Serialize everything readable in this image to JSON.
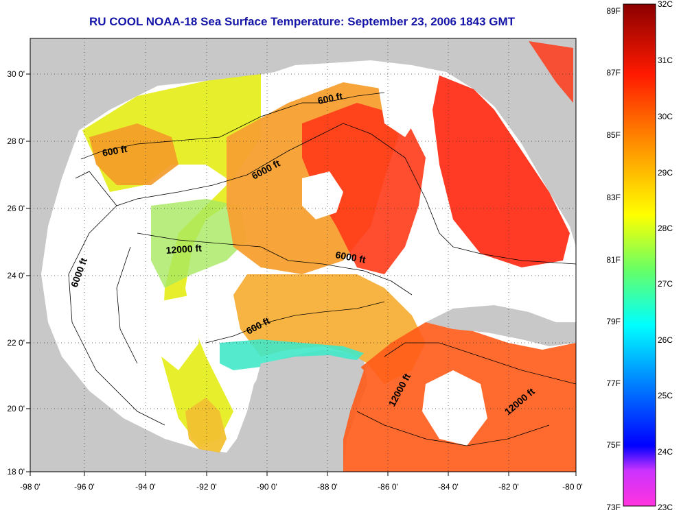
{
  "title": "RU COOL  NOAA-18  Sea Surface Temperature:  September 23, 2006 1843 GMT",
  "map": {
    "x_ticks": [
      "-98 0'",
      "-96 0'",
      "-94 0'",
      "-92 0'",
      "-90 0'",
      "-88 0'",
      "-86 0'",
      "-84 0'",
      "-82 0'",
      "-80 0'"
    ],
    "y_ticks": [
      "30 0'",
      "28 0'",
      "26 0'",
      "24 0'",
      "22 0'",
      "20 0'",
      "18 0'"
    ],
    "contour_labels": [
      {
        "id": "c600a",
        "text": "600 ft"
      },
      {
        "id": "c600b",
        "text": "600 ft"
      },
      {
        "id": "c600c",
        "text": "600 ft"
      },
      {
        "id": "c6000a",
        "text": "6000 ft"
      },
      {
        "id": "c6000b",
        "text": "6000 ft"
      },
      {
        "id": "c6000c",
        "text": "6000 ft"
      },
      {
        "id": "c12000a",
        "text": "12000 ft"
      },
      {
        "id": "c12000b",
        "text": "12000 ft"
      },
      {
        "id": "c12000c",
        "text": "12000 ft"
      }
    ],
    "colors": {
      "land": "#c8c8c8",
      "cloud": "#ffffff",
      "frame": "#000000"
    }
  },
  "colorbar": {
    "fahrenheit_labels": [
      "89F",
      "87F",
      "85F",
      "83F",
      "81F",
      "79F",
      "77F",
      "75F",
      "73F"
    ],
    "celsius_labels": [
      "32C",
      "31C",
      "30C",
      "29C",
      "28C",
      "27C",
      "26C",
      "25C",
      "24C",
      "23C"
    ],
    "stops": [
      "#ff33dd",
      "#0000ff",
      "#00aaff",
      "#00ffff",
      "#66ff66",
      "#ffff00",
      "#ff8800",
      "#ff0000",
      "#8b0000"
    ]
  }
}
